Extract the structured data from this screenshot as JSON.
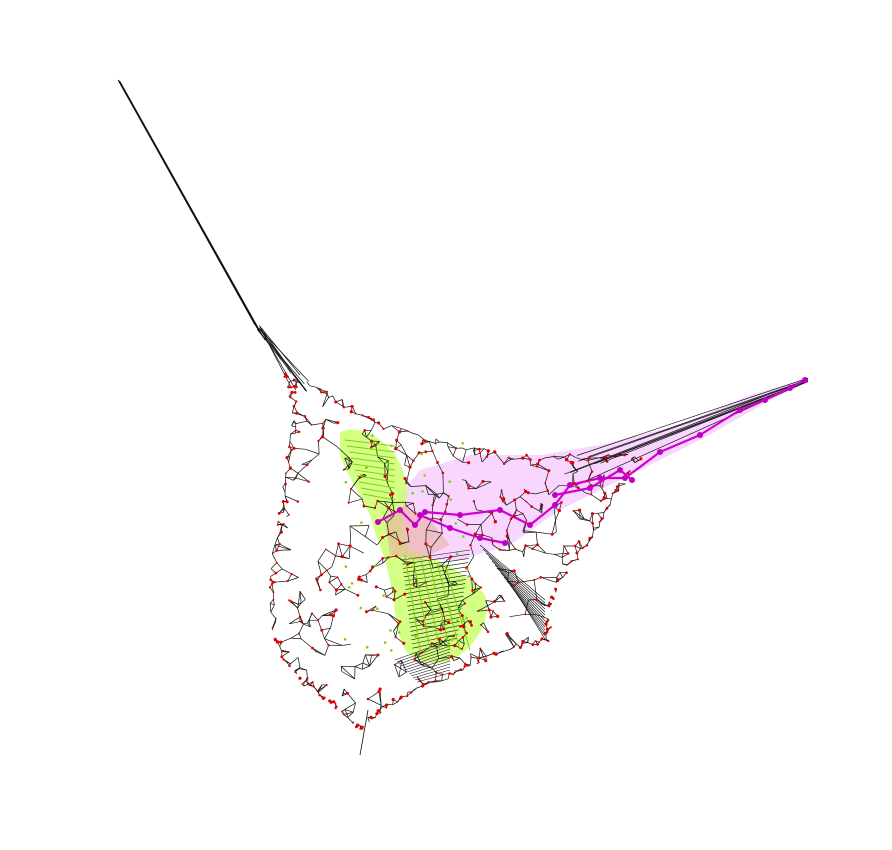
{
  "diagram": {
    "type": "network-mesh",
    "colors": {
      "background": "#ffffff",
      "edge": "#111111",
      "node": "#e00000",
      "highlight_green_fill": "#c8ff66",
      "highlight_green_node": "#7ad300",
      "highlight_magenta_fill": "#f5c8ff",
      "highlight_magenta_path": "#d000d0",
      "highlight_magenta_node": "#c000c0"
    },
    "regions": [
      {
        "name": "green-cluster",
        "color_key": "highlight_green_fill"
      },
      {
        "name": "magenta-cluster",
        "color_key": "highlight_magenta_fill"
      }
    ]
  }
}
